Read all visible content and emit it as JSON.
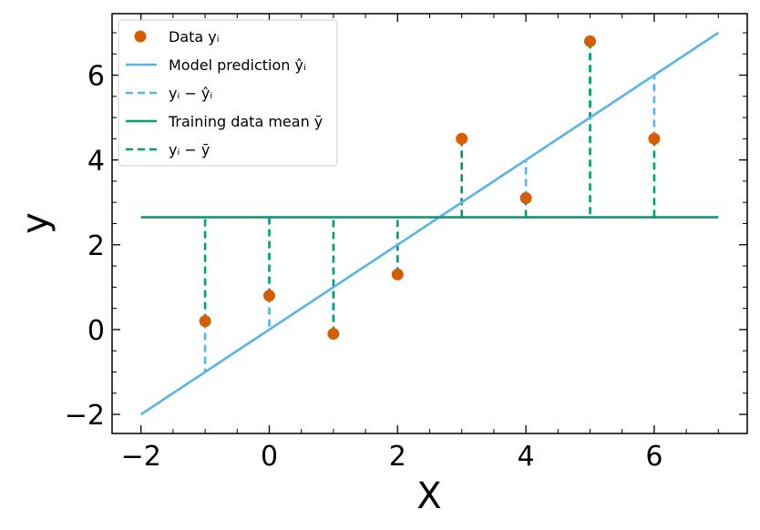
{
  "chart_data": {
    "type": "scatter",
    "xlabel": "X",
    "ylabel": "y",
    "xlim": [
      -2.45,
      7.45
    ],
    "ylim": [
      -2.45,
      7.45
    ],
    "xticks": [
      -2,
      0,
      2,
      4,
      6
    ],
    "yticks": [
      -2,
      0,
      2,
      4,
      6
    ],
    "xtick_labels": [
      "−2",
      "0",
      "2",
      "4",
      "6"
    ],
    "ytick_labels": [
      "−2",
      "0",
      "2",
      "4",
      "6"
    ],
    "minor_tick_step": 0.5,
    "legend_position": "upper-left",
    "data": {
      "x": [
        -1,
        0,
        1,
        2,
        3,
        4,
        5,
        6
      ],
      "y": [
        0.2,
        0.8,
        -0.1,
        1.3,
        4.5,
        3.1,
        6.8,
        4.5
      ]
    },
    "model_line": {
      "x": [
        -2,
        7
      ],
      "y": [
        -2,
        7
      ]
    },
    "mean_line": {
      "x": [
        -2,
        7
      ],
      "y": 2.65
    },
    "colors": {
      "data": "#d55e00",
      "model": "#56b4e9",
      "mean": "#009e73"
    },
    "legend": [
      {
        "key": "data",
        "label": "Data yᵢ",
        "style": "marker"
      },
      {
        "key": "model",
        "label": "Model prediction ŷᵢ",
        "style": "solid-model"
      },
      {
        "key": "res_model",
        "label": "yᵢ − ŷᵢ",
        "style": "dashed-model"
      },
      {
        "key": "mean",
        "label": "Training data mean ȳ",
        "style": "solid-mean"
      },
      {
        "key": "res_mean",
        "label": "yᵢ − ȳ",
        "style": "dashed-mean"
      }
    ]
  }
}
